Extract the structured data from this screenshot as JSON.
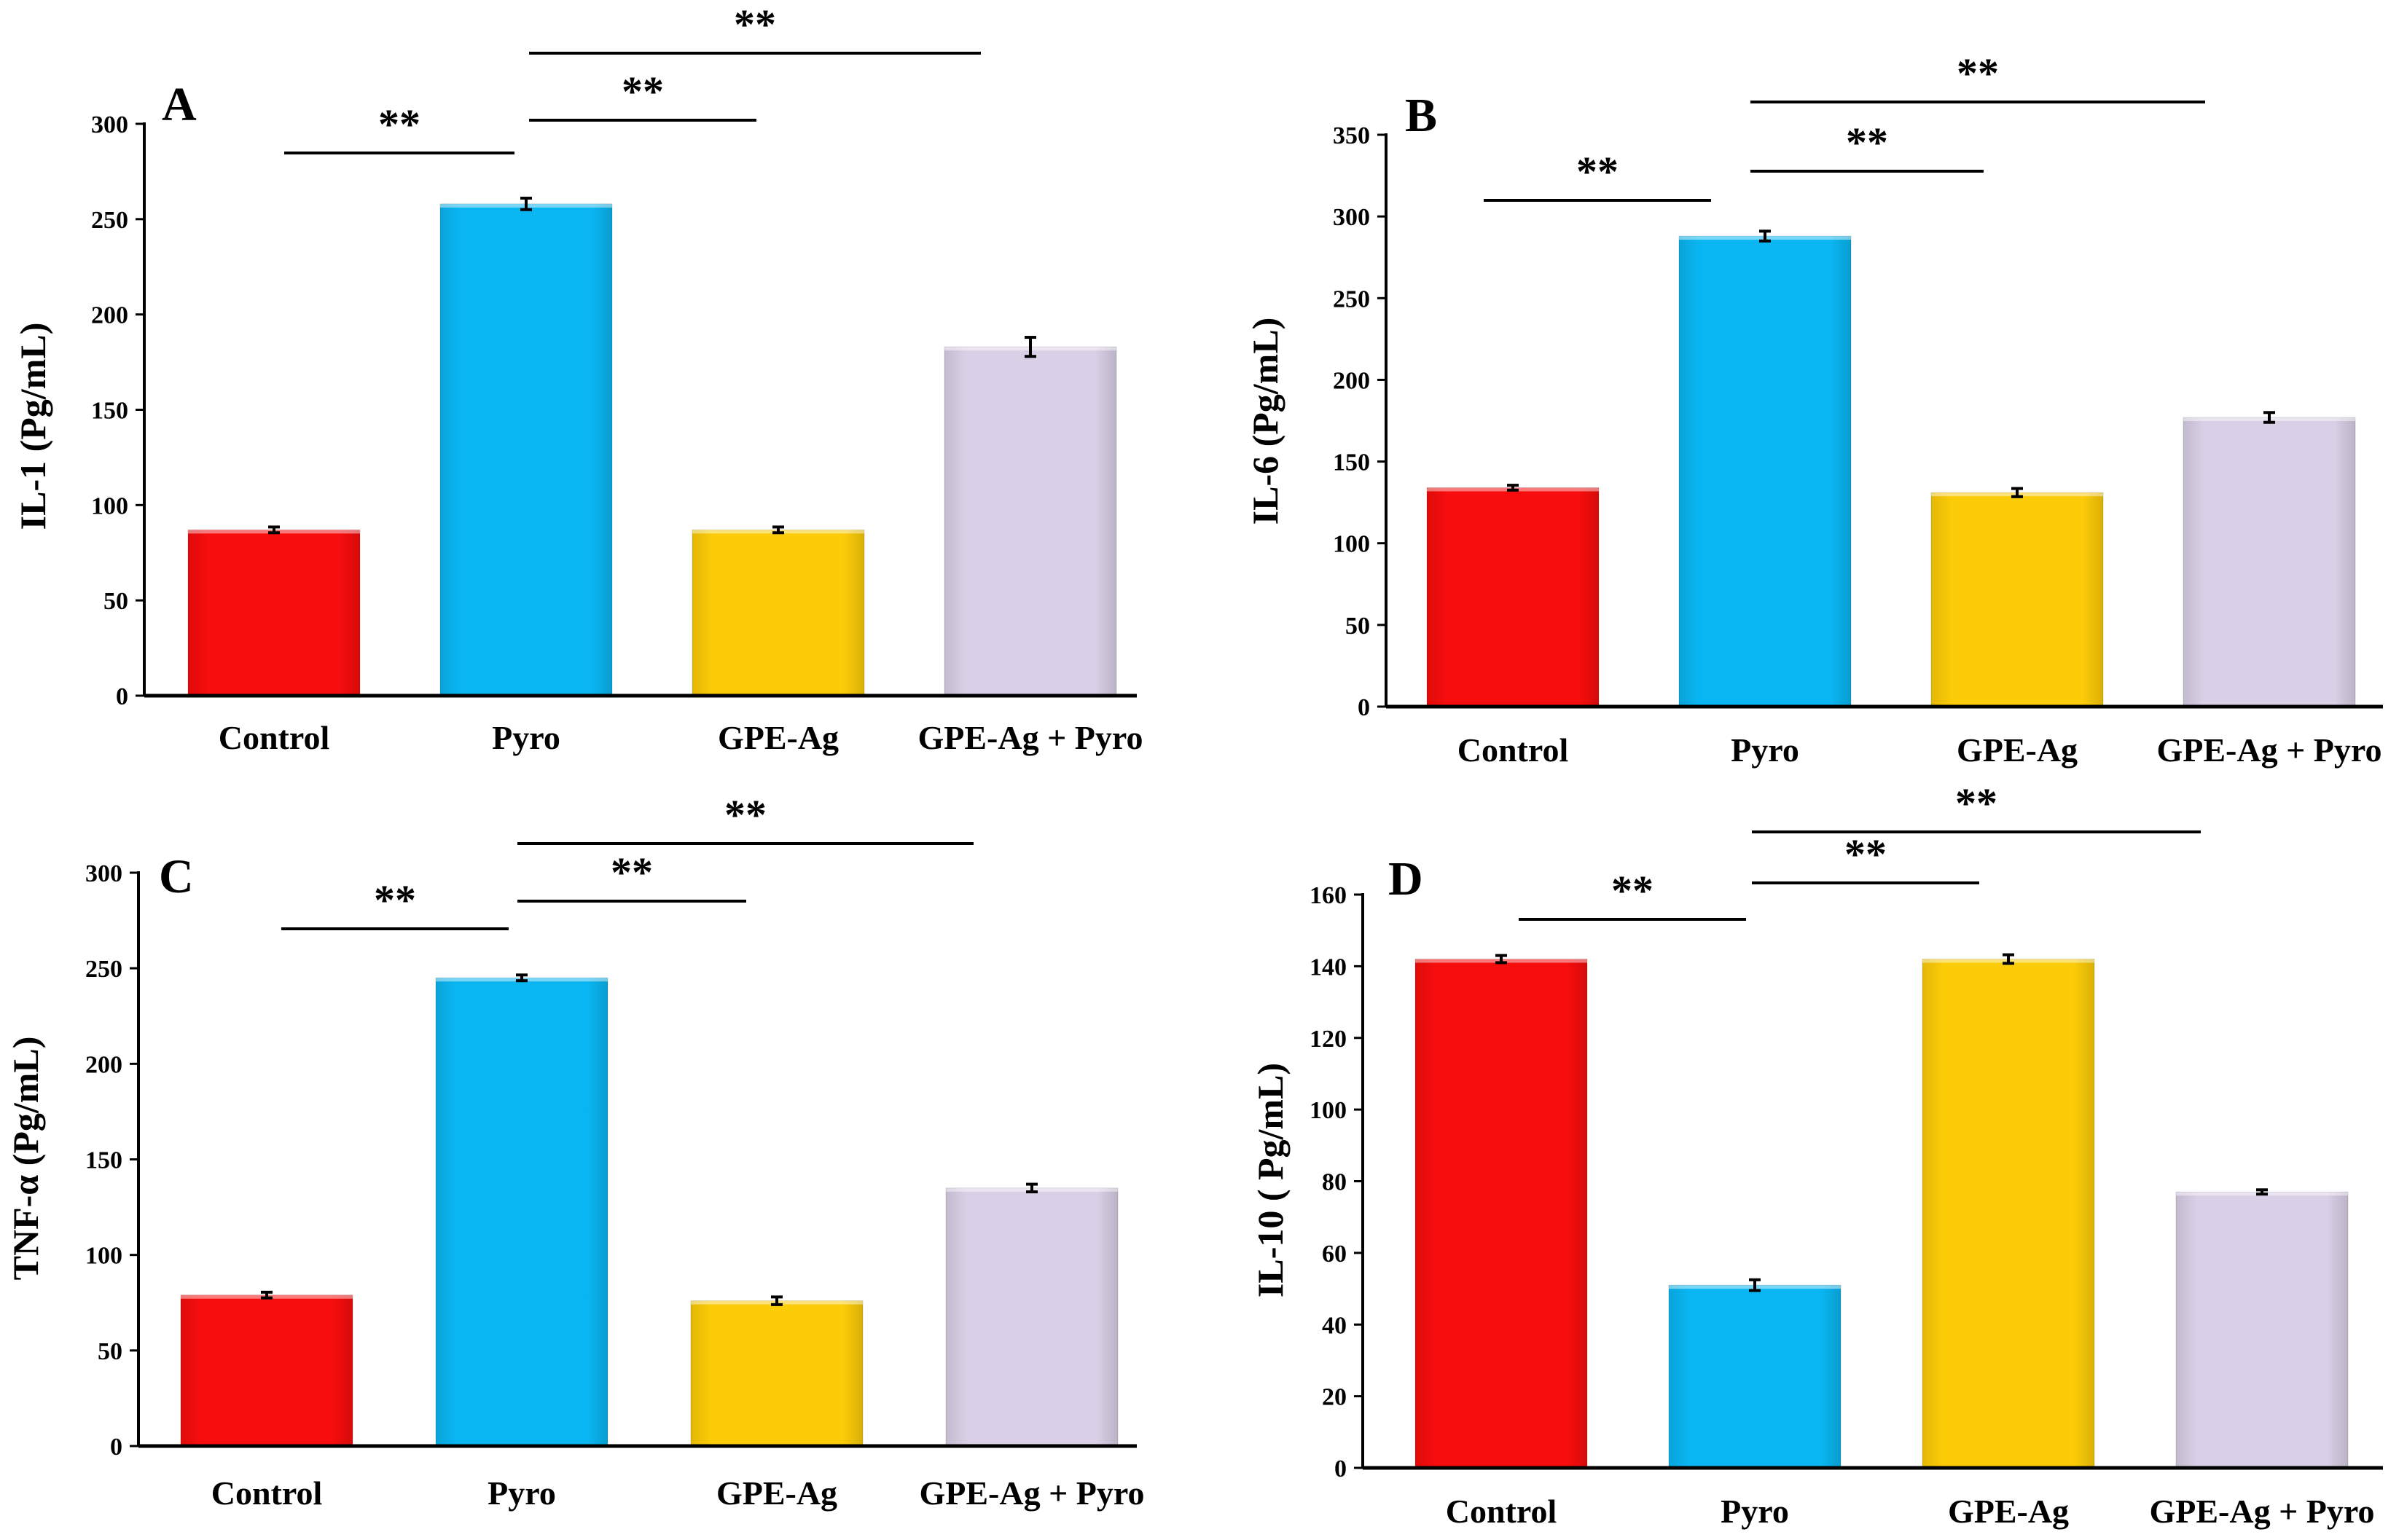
{
  "colors": {
    "Control": "#f70d0d",
    "Pyro": "#0ab6f2",
    "GPE-Ag": "#fccc08",
    "GPE-Ag + Pyro": "#d9cfe6"
  },
  "chart_data": [
    {
      "type": "bar",
      "panel": "A",
      "categories": [
        "Control",
        "Pyro",
        "GPE-Ag",
        "GPE-Ag + Pyro"
      ],
      "values": [
        87,
        258,
        87,
        183
      ],
      "errors": [
        1.5,
        3,
        1.5,
        5
      ],
      "ylabel": "IL-1 (Pg/mL)",
      "ylim": [
        0,
        300
      ],
      "yticks": [
        "0",
        "50",
        "100",
        "150",
        "200",
        "250",
        "300"
      ],
      "significance": [
        {
          "from": 0,
          "to": 1,
          "label": "**"
        },
        {
          "from": 1,
          "to": 2,
          "label": "**"
        },
        {
          "from": 1,
          "to": 3,
          "label": "**"
        }
      ]
    },
    {
      "type": "bar",
      "panel": "B",
      "categories": [
        "Control",
        "Pyro",
        "GPE-Ag",
        "GPE-Ag + Pyro"
      ],
      "values": [
        134,
        288,
        131,
        177
      ],
      "errors": [
        1.5,
        3,
        2.5,
        3
      ],
      "ylabel": "IL-6 (Pg/mL)",
      "ylim": [
        0,
        350
      ],
      "yticks": [
        "0",
        "50",
        "100",
        "150",
        "200",
        "250",
        "300",
        "350"
      ],
      "significance": [
        {
          "from": 0,
          "to": 1,
          "label": "**"
        },
        {
          "from": 1,
          "to": 2,
          "label": "**"
        },
        {
          "from": 1,
          "to": 3,
          "label": "**"
        }
      ]
    },
    {
      "type": "bar",
      "panel": "C",
      "categories": [
        "Control",
        "Pyro",
        "GPE-Ag",
        "GPE-Ag + Pyro"
      ],
      "values": [
        79,
        245,
        76,
        135
      ],
      "errors": [
        1.5,
        1.5,
        2,
        2
      ],
      "ylabel": "TNF-α (Pg/mL)",
      "ylim": [
        0,
        300
      ],
      "yticks": [
        "0",
        "50",
        "100",
        "150",
        "200",
        "250",
        "300"
      ],
      "significance": [
        {
          "from": 0,
          "to": 1,
          "label": "**"
        },
        {
          "from": 1,
          "to": 2,
          "label": "**"
        },
        {
          "from": 1,
          "to": 3,
          "label": "**"
        }
      ]
    },
    {
      "type": "bar",
      "panel": "D",
      "categories": [
        "Control",
        "Pyro",
        "GPE-Ag",
        "GPE-Ag + Pyro"
      ],
      "values": [
        142,
        51,
        142,
        77
      ],
      "errors": [
        1,
        1.5,
        1.2,
        0.6
      ],
      "ylabel": "IL-10 ( Pg/mL)",
      "ylim": [
        0,
        160
      ],
      "yticks": [
        "0",
        "20",
        "40",
        "60",
        "80",
        "100",
        "120",
        "140",
        "160"
      ],
      "significance": [
        {
          "from": 0,
          "to": 1,
          "label": "**"
        },
        {
          "from": 1,
          "to": 2,
          "label": "**"
        },
        {
          "from": 1,
          "to": 3,
          "label": "**"
        }
      ]
    }
  ]
}
